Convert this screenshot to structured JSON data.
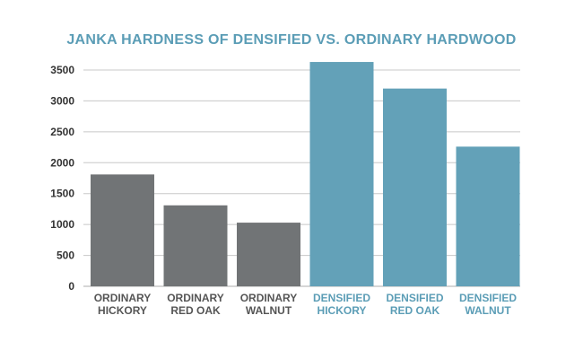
{
  "colors": {
    "ordinary": "#717476",
    "densified": "#63a1b8",
    "title": "#5b9db6",
    "grid": "#c8c8c8",
    "ordinary_label": "#555555",
    "densified_label": "#5b9db6"
  },
  "chart_data": {
    "type": "bar",
    "title": "JANKA HARDNESS OF DENSIFIED VS. ORDINARY HARDWOOD",
    "xlabel": "",
    "ylabel": "",
    "ylim": [
      0,
      3500
    ],
    "yticks": [
      0,
      500,
      1000,
      1500,
      2000,
      2500,
      3000,
      3500
    ],
    "grid": true,
    "legend": "none",
    "categories": [
      [
        "ORDINARY",
        "HICKORY"
      ],
      [
        "ORDINARY",
        "RED OAK"
      ],
      [
        "ORDINARY",
        "WALNUT"
      ],
      [
        "DENSIFIED",
        "HICKORY"
      ],
      [
        "DENSIFIED",
        "RED OAK"
      ],
      [
        "DENSIFIED",
        "WALNUT"
      ]
    ],
    "groups": [
      "ordinary",
      "ordinary",
      "ordinary",
      "densified",
      "densified",
      "densified"
    ],
    "values": [
      1810,
      1310,
      1030,
      3630,
      3200,
      2260
    ]
  }
}
